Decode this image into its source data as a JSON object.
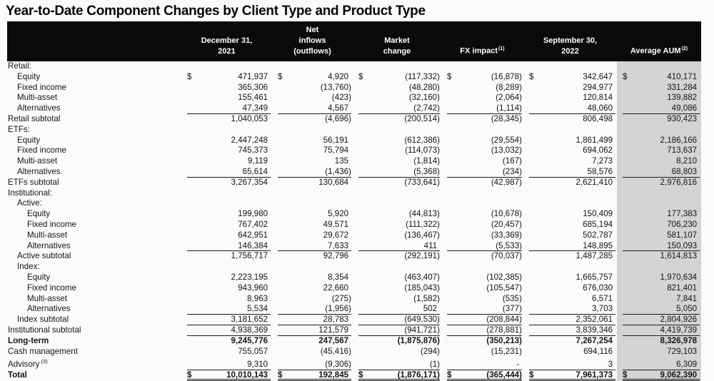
{
  "title": "Year-to-Date Component Changes by Client Type and Product Type",
  "colors": {
    "header_bg": "#0a0a0a",
    "header_text": "#ffffff",
    "aum_column_bg": "#d4d4d7",
    "rule_color": "#1a1a1a",
    "text": "#141414",
    "page_bg": "#fbfbfb"
  },
  "table": {
    "columns": [
      {
        "lines": [
          "December 31,",
          "2021"
        ],
        "sup": ""
      },
      {
        "lines": [
          "Net",
          "inflows",
          "(outflows)"
        ],
        "sup": ""
      },
      {
        "lines": [
          "Market",
          "change"
        ],
        "sup": ""
      },
      {
        "lines": [
          "FX impact"
        ],
        "sup": "(1)"
      },
      {
        "lines": [
          "September 30,",
          "2022"
        ],
        "sup": ""
      },
      {
        "lines": [
          "Average AUM"
        ],
        "sup": "(2)"
      }
    ],
    "rows": [
      {
        "label": "Retail:",
        "sup": "",
        "indent": 0,
        "bold": false,
        "dollar": false,
        "rule": "none",
        "values": []
      },
      {
        "label": "Equity",
        "sup": "",
        "indent": 1,
        "bold": false,
        "dollar": true,
        "rule": "none",
        "values": [
          "471,937",
          "4,920",
          "(117,332)",
          "(16,878)",
          "342,647",
          "410,171"
        ]
      },
      {
        "label": "Fixed income",
        "sup": "",
        "indent": 1,
        "bold": false,
        "dollar": false,
        "rule": "none",
        "values": [
          "365,306",
          "(13,760)",
          "(48,280)",
          "(8,289)",
          "294,977",
          "331,284"
        ]
      },
      {
        "label": "Multi-asset",
        "sup": "",
        "indent": 1,
        "bold": false,
        "dollar": false,
        "rule": "none",
        "values": [
          "155,461",
          "(423)",
          "(32,160)",
          "(2,064)",
          "120,814",
          "139,882"
        ]
      },
      {
        "label": "Alternatives",
        "sup": "",
        "indent": 1,
        "bold": false,
        "dollar": false,
        "rule": "single",
        "values": [
          "47,349",
          "4,567",
          "(2,742)",
          "(1,114)",
          "48,060",
          "49,086"
        ]
      },
      {
        "label": "Retail subtotal",
        "sup": "",
        "indent": 0,
        "bold": false,
        "dollar": false,
        "rule": "none",
        "values": [
          "1,040,053",
          "(4,696)",
          "(200,514)",
          "(28,345)",
          "806,498",
          "930,423"
        ]
      },
      {
        "label": "ETFs:",
        "sup": "",
        "indent": 0,
        "bold": false,
        "dollar": false,
        "rule": "none",
        "values": []
      },
      {
        "label": "Equity",
        "sup": "",
        "indent": 1,
        "bold": false,
        "dollar": false,
        "rule": "none",
        "values": [
          "2,447,248",
          "56,191",
          "(612,386)",
          "(29,554)",
          "1,861,499",
          "2,186,166"
        ]
      },
      {
        "label": "Fixed income",
        "sup": "",
        "indent": 1,
        "bold": false,
        "dollar": false,
        "rule": "none",
        "values": [
          "745,373",
          "75,794",
          "(114,073)",
          "(13,032)",
          "694,062",
          "713,637"
        ]
      },
      {
        "label": "Multi-asset",
        "sup": "",
        "indent": 1,
        "bold": false,
        "dollar": false,
        "rule": "none",
        "values": [
          "9,119",
          "135",
          "(1,814)",
          "(167)",
          "7,273",
          "8,210"
        ]
      },
      {
        "label": "Alternatives",
        "sup": "",
        "indent": 1,
        "bold": false,
        "dollar": false,
        "rule": "single",
        "values": [
          "65,614",
          "(1,436)",
          "(5,368)",
          "(234)",
          "58,576",
          "68,803"
        ]
      },
      {
        "label": "ETFs subtotal",
        "sup": "",
        "indent": 0,
        "bold": false,
        "dollar": false,
        "rule": "none",
        "values": [
          "3,267,354",
          "130,684",
          "(733,641)",
          "(42,987)",
          "2,621,410",
          "2,976,816"
        ]
      },
      {
        "label": "Institutional:",
        "sup": "",
        "indent": 0,
        "bold": false,
        "dollar": false,
        "rule": "none",
        "values": []
      },
      {
        "label": "Active:",
        "sup": "",
        "indent": 1,
        "bold": false,
        "dollar": false,
        "rule": "none",
        "values": []
      },
      {
        "label": "Equity",
        "sup": "",
        "indent": 2,
        "bold": false,
        "dollar": false,
        "rule": "none",
        "values": [
          "199,980",
          "5,920",
          "(44,813)",
          "(10,678)",
          "150,409",
          "177,383"
        ]
      },
      {
        "label": "Fixed income",
        "sup": "",
        "indent": 2,
        "bold": false,
        "dollar": false,
        "rule": "none",
        "values": [
          "767,402",
          "49,571",
          "(111,322)",
          "(20,457)",
          "685,194",
          "706,230"
        ]
      },
      {
        "label": "Multi-asset",
        "sup": "",
        "indent": 2,
        "bold": false,
        "dollar": false,
        "rule": "none",
        "values": [
          "642,951",
          "29,672",
          "(136,467)",
          "(33,369)",
          "502,787",
          "581,107"
        ]
      },
      {
        "label": "Alternatives",
        "sup": "",
        "indent": 2,
        "bold": false,
        "dollar": false,
        "rule": "single",
        "values": [
          "146,384",
          "7,633",
          "411",
          "(5,533)",
          "148,895",
          "150,093"
        ]
      },
      {
        "label": "Active subtotal",
        "sup": "",
        "indent": 1,
        "bold": false,
        "dollar": false,
        "rule": "none",
        "values": [
          "1,756,717",
          "92,796",
          "(292,191)",
          "(70,037)",
          "1,487,285",
          "1,614,813"
        ]
      },
      {
        "label": "Index:",
        "sup": "",
        "indent": 1,
        "bold": false,
        "dollar": false,
        "rule": "none",
        "values": []
      },
      {
        "label": "Equity",
        "sup": "",
        "indent": 2,
        "bold": false,
        "dollar": false,
        "rule": "none",
        "values": [
          "2,223,195",
          "8,354",
          "(463,407)",
          "(102,385)",
          "1,665,757",
          "1,970,634"
        ]
      },
      {
        "label": "Fixed income",
        "sup": "",
        "indent": 2,
        "bold": false,
        "dollar": false,
        "rule": "none",
        "values": [
          "943,960",
          "22,660",
          "(185,043)",
          "(105,547)",
          "676,030",
          "821,401"
        ]
      },
      {
        "label": "Multi-asset",
        "sup": "",
        "indent": 2,
        "bold": false,
        "dollar": false,
        "rule": "none",
        "values": [
          "8,963",
          "(275)",
          "(1,582)",
          "(535)",
          "6,571",
          "7,841"
        ]
      },
      {
        "label": "Alternatives",
        "sup": "",
        "indent": 2,
        "bold": false,
        "dollar": false,
        "rule": "single",
        "values": [
          "5,534",
          "(1,956)",
          "502",
          "(377)",
          "3,703",
          "5,050"
        ]
      },
      {
        "label": "Index subtotal",
        "sup": "",
        "indent": 1,
        "bold": false,
        "dollar": false,
        "rule": "single",
        "values": [
          "3,181,652",
          "28,783",
          "(649,530)",
          "(208,844)",
          "2,352,061",
          "2,804,926"
        ]
      },
      {
        "label": "Institutional subtotal",
        "sup": "",
        "indent": 0,
        "bold": false,
        "dollar": false,
        "rule": "single",
        "values": [
          "4,938,369",
          "121,579",
          "(941,721)",
          "(278,881)",
          "3,839,346",
          "4,419,739"
        ]
      },
      {
        "label": "Long-term",
        "sup": "",
        "indent": 0,
        "bold": true,
        "dollar": false,
        "rule": "none",
        "values": [
          "9,245,776",
          "247,567",
          "(1,875,876)",
          "(350,213)",
          "7,267,254",
          "8,326,978"
        ]
      },
      {
        "label": "Cash management",
        "sup": "",
        "indent": 0,
        "bold": false,
        "dollar": false,
        "rule": "none",
        "values": [
          "755,057",
          "(45,416)",
          "(294)",
          "(15,231)",
          "694,116",
          "729,103"
        ]
      },
      {
        "label": "Advisory",
        "sup": "(3)",
        "indent": 0,
        "bold": false,
        "dollar": false,
        "rule": "single",
        "values": [
          "9,310",
          "(9,306)",
          "(1)",
          "-",
          "3",
          "6,309"
        ]
      },
      {
        "label": "Total",
        "sup": "",
        "indent": 0,
        "bold": true,
        "dollar": true,
        "rule": "double",
        "values": [
          "10,010,143",
          "192,845",
          "(1,876,171)",
          "(365,444)",
          "7,961,373",
          "9,062,390"
        ]
      }
    ]
  }
}
